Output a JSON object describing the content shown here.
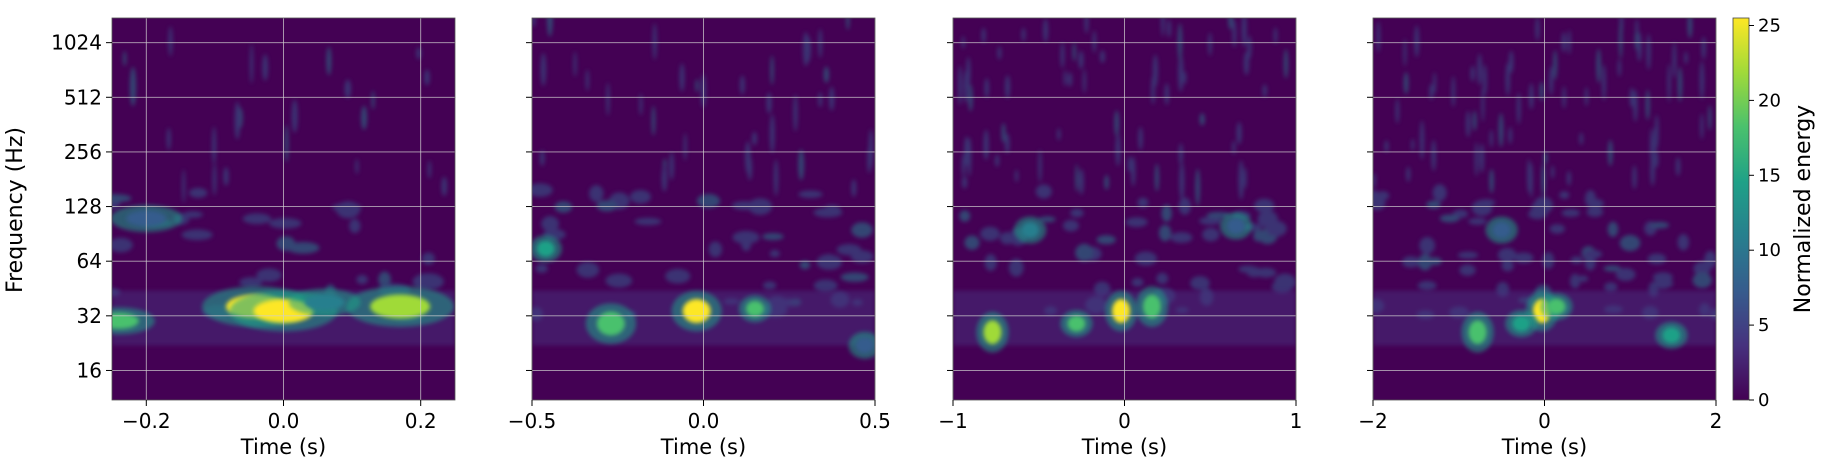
{
  "chart_data": {
    "type": "heatmap",
    "ylabel": "Frequency (Hz)",
    "y_scale": "log2",
    "ylim": [
      11,
      1400
    ],
    "yticks": [
      16,
      32,
      64,
      128,
      256,
      512,
      1024
    ],
    "grid": true,
    "colorbar": {
      "label": "Normalized energy",
      "min": 0,
      "max": 25.5,
      "ticks": [
        0,
        5,
        10,
        15,
        20,
        25
      ],
      "colormap": "viridis",
      "colors": [
        "#440154",
        "#46327e",
        "#365c8d",
        "#277f8e",
        "#1fa187",
        "#4ac16d",
        "#a0da39",
        "#fde725"
      ]
    },
    "panels": [
      {
        "xlabel": "Time (s)",
        "xlim": [
          -0.25,
          0.25
        ],
        "xticks": [
          -0.2,
          0.0,
          0.2
        ],
        "xtick_labels": [
          "−0.2",
          "0.0",
          "0.2"
        ],
        "blobs": [
          {
            "t": -0.04,
            "f": 36,
            "energy": 25
          },
          {
            "t": 0.0,
            "f": 34,
            "energy": 24
          },
          {
            "t": 0.17,
            "f": 36,
            "energy": 22
          },
          {
            "t": -0.24,
            "f": 30,
            "energy": 18
          },
          {
            "t": -0.2,
            "f": 110,
            "energy": 9
          },
          {
            "t": 0.06,
            "f": 38,
            "energy": 12
          }
        ]
      },
      {
        "xlabel": "Time (s)",
        "xlim": [
          -0.5,
          0.5
        ],
        "xticks": [
          -0.5,
          0.0,
          0.5
        ],
        "xtick_labels": [
          "−0.5",
          "0.0",
          "0.5"
        ],
        "blobs": [
          {
            "t": -0.02,
            "f": 34,
            "energy": 25
          },
          {
            "t": -0.27,
            "f": 29,
            "energy": 20
          },
          {
            "t": 0.15,
            "f": 35,
            "energy": 18
          },
          {
            "t": -0.46,
            "f": 75,
            "energy": 14
          },
          {
            "t": 0.47,
            "f": 22,
            "energy": 8
          }
        ]
      },
      {
        "xlabel": "Time (s)",
        "xlim": [
          -1,
          1
        ],
        "xticks": [
          -1,
          0,
          1
        ],
        "xtick_labels": [
          "−1",
          "0",
          "1"
        ],
        "blobs": [
          {
            "t": -0.02,
            "f": 34,
            "energy": 25
          },
          {
            "t": -0.77,
            "f": 26,
            "energy": 23
          },
          {
            "t": 0.16,
            "f": 36,
            "energy": 20
          },
          {
            "t": -0.28,
            "f": 29,
            "energy": 17
          },
          {
            "t": -0.55,
            "f": 95,
            "energy": 10
          },
          {
            "t": 0.65,
            "f": 100,
            "energy": 8
          }
        ]
      },
      {
        "xlabel": "Time (s)",
        "xlim": [
          -2,
          2
        ],
        "xticks": [
          -2,
          0,
          2
        ],
        "xtick_labels": [
          "−2",
          "0",
          "2"
        ],
        "blobs": [
          {
            "t": -0.03,
            "f": 34,
            "energy": 24
          },
          {
            "t": -0.78,
            "f": 26,
            "energy": 20
          },
          {
            "t": 0.14,
            "f": 36,
            "energy": 18
          },
          {
            "t": -0.27,
            "f": 29,
            "energy": 15
          },
          {
            "t": 1.48,
            "f": 25,
            "energy": 13
          },
          {
            "t": -0.5,
            "f": 95,
            "energy": 8
          }
        ]
      }
    ]
  }
}
